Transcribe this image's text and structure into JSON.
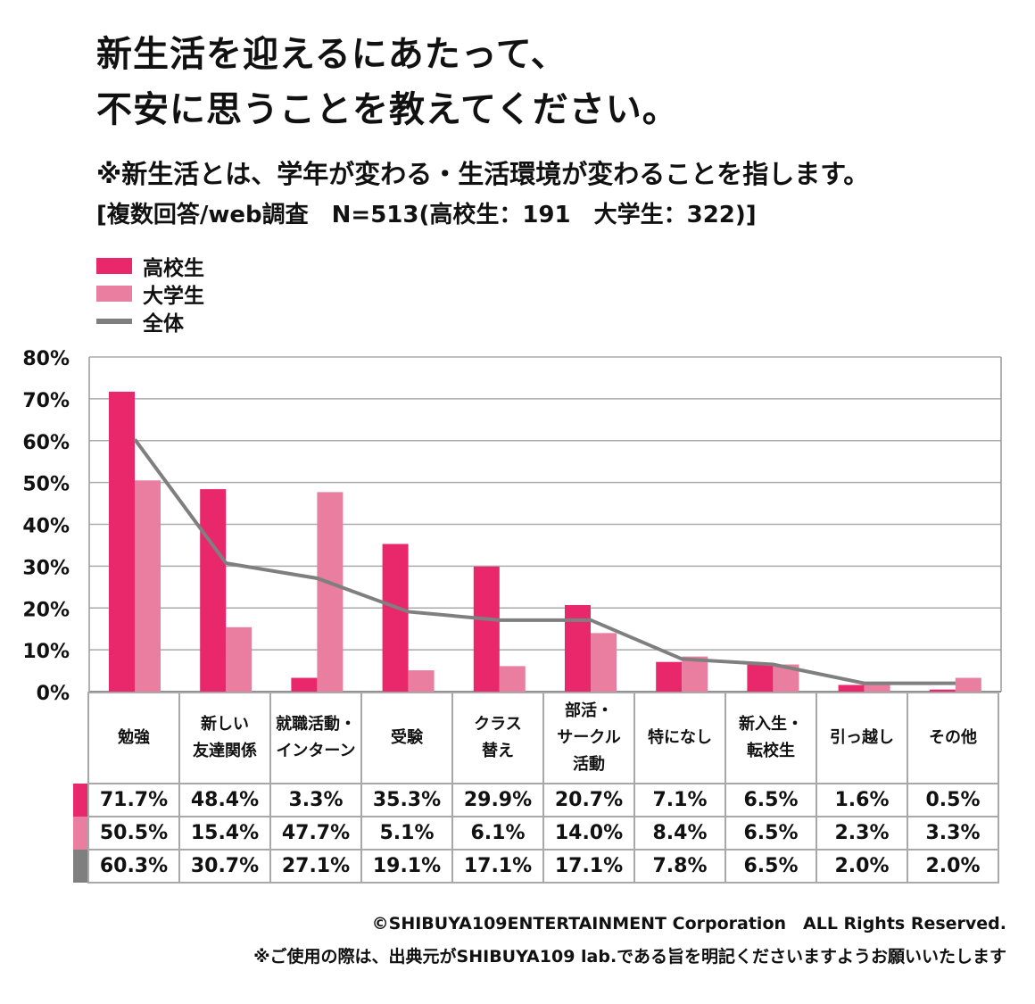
{
  "title_lines": [
    "新生活を迎えるにあたって、",
    "不安に思うことを教えてください。"
  ],
  "subtitle": "※新生活とは、学年が変わる・生活環境が変わることを指します。",
  "survey_note": "[複数回答/web調査　N=513(高校生：191　大学生：322)]",
  "colors": {
    "high_school": "#e8286a",
    "university": "#e97ea0",
    "overall": "#7f7f7f"
  },
  "chart_data": {
    "type": "bar",
    "title": "新生活を迎えるにあたって、不安に思うことを教えてください。",
    "categories": [
      "勉強",
      "新しい\n友達関係",
      "就職活動・\nインターン",
      "受験",
      "クラス\n替え",
      "部活・\nサークル\n活動",
      "特になし",
      "新入生・\n転校生",
      "引っ越し",
      "その他"
    ],
    "series": [
      {
        "name": "高校生",
        "type": "bar",
        "values": [
          71.7,
          48.4,
          3.3,
          35.3,
          29.9,
          20.7,
          7.1,
          6.5,
          1.6,
          0.5
        ]
      },
      {
        "name": "大学生",
        "type": "bar",
        "values": [
          50.5,
          15.4,
          47.7,
          5.1,
          6.1,
          14.0,
          8.4,
          6.5,
          2.3,
          3.3
        ]
      },
      {
        "name": "全体",
        "type": "line",
        "values": [
          60.3,
          30.7,
          27.1,
          19.1,
          17.1,
          17.1,
          7.8,
          6.5,
          2.0,
          2.0
        ]
      }
    ],
    "yticks": [
      "0%",
      "10%",
      "20%",
      "30%",
      "40%",
      "50%",
      "60%",
      "70%",
      "80%"
    ],
    "ylim": [
      0,
      80
    ],
    "grid": true,
    "legend": "top-left",
    "value_labels": {
      "high_school": [
        "71.7%",
        "48.4%",
        "3.3%",
        "35.3%",
        "29.9%",
        "20.7%",
        "7.1%",
        "6.5%",
        "1.6%",
        "0.5%"
      ],
      "university": [
        "50.5%",
        "15.4%",
        "47.7%",
        "5.1%",
        "6.1%",
        "14.0%",
        "8.4%",
        "6.5%",
        "2.3%",
        "3.3%"
      ],
      "overall": [
        "60.3%",
        "30.7%",
        "27.1%",
        "19.1%",
        "17.1%",
        "17.1%",
        "7.8%",
        "6.5%",
        "2.0%",
        "2.0%"
      ]
    }
  },
  "footer": {
    "copyright": "©SHIBUYA109ENTERTAINMENT Corporation　ALL Rights Reserved.",
    "notice": "※ご使用の際は、出典元がSHIBUYA109 lab.である旨を明記くださいますようお願いいたします"
  }
}
